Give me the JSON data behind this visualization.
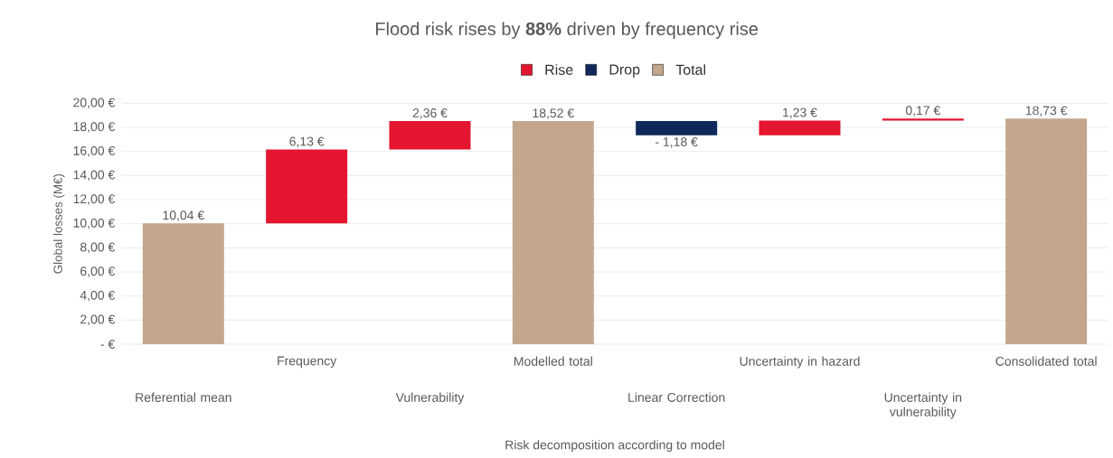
{
  "chart_data": {
    "type": "bar",
    "title": "Flood risk rises by **88%** driven by frequency rise",
    "xlabel": "Risk decomposition according to model",
    "ylabel": "Global losses (M€)",
    "categories": [
      "Referential mean",
      "Frequency",
      "Vulnerability",
      "Modelled total",
      "Linear Correction",
      "Uncertainty in hazard",
      "Uncertainty in vulnerability",
      "Consolidated total"
    ],
    "series": [
      {
        "name": "Rise",
        "color": "#e3152f",
        "values": [
          null,
          6.13,
          2.36,
          null,
          null,
          1.23,
          0.17,
          null
        ],
        "base": [
          null,
          10.04,
          16.17,
          null,
          null,
          17.34,
          18.57,
          null
        ],
        "value_labels": [
          null,
          "6,13 €",
          "2,36 €",
          null,
          null,
          "1,23 €",
          "0,17 €",
          null
        ]
      },
      {
        "name": "Drop",
        "color": "#10295a",
        "values": [
          null,
          null,
          null,
          null,
          -1.18,
          null,
          null,
          null
        ],
        "base": [
          null,
          null,
          null,
          null,
          18.52,
          null,
          null,
          null
        ],
        "value_labels": [
          null,
          null,
          null,
          null,
          "- 1,18 €",
          null,
          null,
          null
        ]
      },
      {
        "name": "Total",
        "color": "#c3a68c",
        "values": [
          10.04,
          null,
          null,
          18.52,
          null,
          null,
          null,
          18.73
        ],
        "value_labels": [
          "10,04 €",
          null,
          null,
          "18,52 €",
          null,
          null,
          null,
          "18,73 €"
        ]
      }
    ],
    "ylim": [
      0,
      20
    ],
    "yticks": [
      {
        "value": 0,
        "label": "-  €"
      },
      {
        "value": 2,
        "label": "2,00 €"
      },
      {
        "value": 4,
        "label": "4,00 €"
      },
      {
        "value": 6,
        "label": "6,00 €"
      },
      {
        "value": 8,
        "label": "8,00 €"
      },
      {
        "value": 10,
        "label": "10,00 €"
      },
      {
        "value": 12,
        "label": "12,00 €"
      },
      {
        "value": 14,
        "label": "14,00 €"
      },
      {
        "value": 16,
        "label": "16,00 €"
      },
      {
        "value": 18,
        "label": "18,00 €"
      },
      {
        "value": 20,
        "label": "20,00 €"
      }
    ],
    "grid": "y",
    "legend": "top"
  }
}
